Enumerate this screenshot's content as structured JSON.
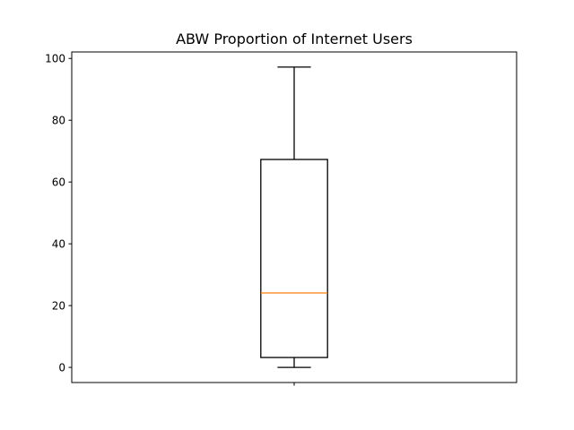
{
  "chart_data": {
    "type": "box",
    "title": "ABW Proportion of Internet Users",
    "xlabel": "",
    "ylabel": "",
    "ylim": [
      -4.9,
      102.1
    ],
    "yticks": [
      0,
      20,
      40,
      60,
      80,
      100
    ],
    "ytick_labels": [
      "0",
      "20",
      "40",
      "60",
      "80",
      "100"
    ],
    "xticks": [
      1
    ],
    "xtick_labels": [
      ""
    ],
    "grid": false,
    "series": [
      {
        "whisker_low": 0.0,
        "q1": 3.2,
        "median": 24.1,
        "q3": 67.3,
        "whisker_high": 97.2
      }
    ],
    "colors": {
      "box": "#000000",
      "median": "#ff7f0e",
      "whisker": "#000000"
    }
  }
}
